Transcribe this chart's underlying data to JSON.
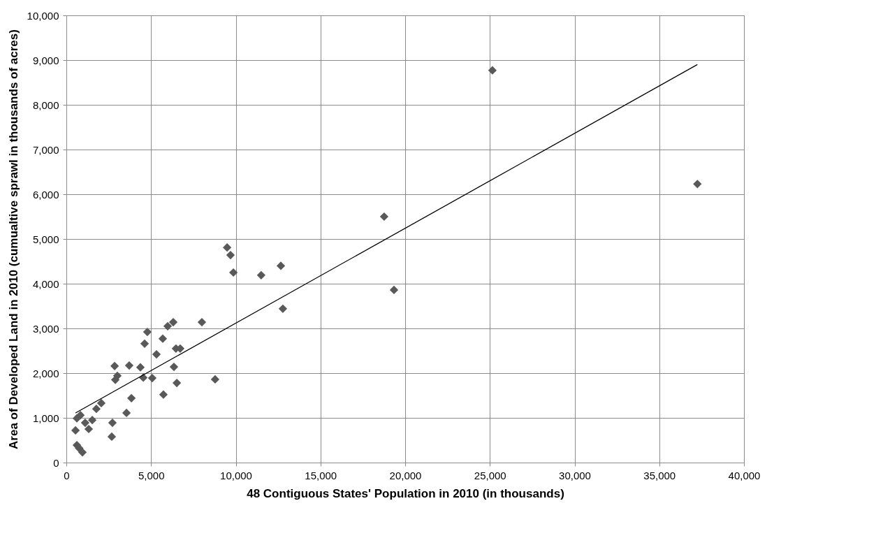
{
  "chart_data": {
    "type": "scatter",
    "xlabel": "48 Contiguous States' Population in 2010 (in thousands)",
    "ylabel": "Area of Developed Land in 2010 (cumualtive sprawl in thousands of acres)",
    "grid": true,
    "xlim": [
      0,
      40000
    ],
    "ylim": [
      0,
      10000
    ],
    "xticks": [
      0,
      {
        "value": 5000,
        "label": "5,000"
      },
      {
        "value": 10000,
        "label": "10,000"
      },
      {
        "value": 15000,
        "label": "15,000"
      },
      {
        "value": 20000,
        "label": "20,000"
      },
      {
        "value": 25000,
        "label": "25,000"
      },
      {
        "value": 30000,
        "label": "30,000"
      },
      {
        "value": 35000,
        "label": "35,000"
      },
      {
        "value": 40000,
        "label": "40,000"
      }
    ],
    "yticks": [
      0,
      {
        "value": 1000,
        "label": "1,000"
      },
      {
        "value": 2000,
        "label": "2,000"
      },
      {
        "value": 3000,
        "label": "3,000"
      },
      {
        "value": 4000,
        "label": "4,000"
      },
      {
        "value": 5000,
        "label": "5,000"
      },
      {
        "value": 6000,
        "label": "6,000"
      },
      {
        "value": 7000,
        "label": "7,000"
      },
      {
        "value": 8000,
        "label": "8,000"
      },
      {
        "value": 9000,
        "label": "9,000"
      },
      {
        "value": 10000,
        "label": "10,000"
      }
    ],
    "series": [
      {
        "color": "#595959",
        "marker": "diamond",
        "x": [
          9490,
          9690,
          9860,
          8000,
          6310,
          5980,
          4780,
          5690,
          4620,
          6470,
          6720,
          5320,
          2850,
          3710,
          4370,
          6350,
          3010,
          2890,
          4540,
          5070,
          8780,
          6520,
          3840,
          5730,
          2060,
          1770,
          3550,
          830,
          620,
          1530,
          1110,
          1320,
          2720,
          540,
          2680,
          620,
          760,
          950,
          18760,
          19340,
          12660,
          11500,
          12780,
          25150,
          37250
        ],
        "values": [
          4810,
          4640,
          4250,
          3140,
          3140,
          3050,
          2920,
          2770,
          2660,
          2550,
          2550,
          2420,
          2160,
          2170,
          2130,
          2140,
          1940,
          1850,
          1900,
          1890,
          1860,
          1780,
          1440,
          1520,
          1330,
          1200,
          1110,
          1060,
          990,
          950,
          890,
          750,
          890,
          720,
          580,
          390,
          320,
          230,
          5500,
          3860,
          4400,
          4190,
          3440,
          8770,
          6230
        ]
      },
      {
        "type": "line",
        "marker": "none",
        "color": "#000000",
        "x": [
          540,
          37250
        ],
        "values": [
          1110,
          8900
        ]
      }
    ]
  }
}
